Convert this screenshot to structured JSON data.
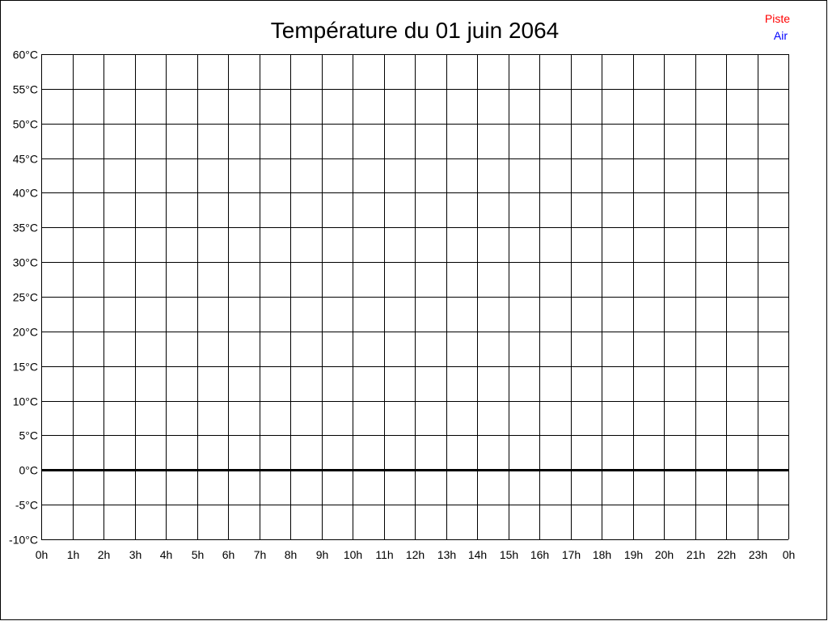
{
  "chart_data": {
    "type": "line",
    "title": "Température du 01 juin 2064",
    "xlabel": "",
    "ylabel": "",
    "x_tick_labels": [
      "0h",
      "1h",
      "2h",
      "3h",
      "4h",
      "5h",
      "6h",
      "7h",
      "8h",
      "9h",
      "10h",
      "11h",
      "12h",
      "13h",
      "14h",
      "15h",
      "16h",
      "17h",
      "18h",
      "19h",
      "20h",
      "21h",
      "22h",
      "23h",
      "0h"
    ],
    "y_tick_labels": [
      "60°C",
      "55°C",
      "50°C",
      "45°C",
      "40°C",
      "35°C",
      "30°C",
      "25°C",
      "20°C",
      "15°C",
      "10°C",
      "5°C",
      "0°C",
      "-5°C",
      "-10°C"
    ],
    "xlim": [
      0,
      24
    ],
    "ylim": [
      -10,
      60
    ],
    "grid": true,
    "legend_position": "top-right",
    "series": [
      {
        "name": "Piste",
        "color": "#ff0000",
        "values": []
      },
      {
        "name": "Air",
        "color": "#0000ff",
        "values": []
      }
    ]
  }
}
